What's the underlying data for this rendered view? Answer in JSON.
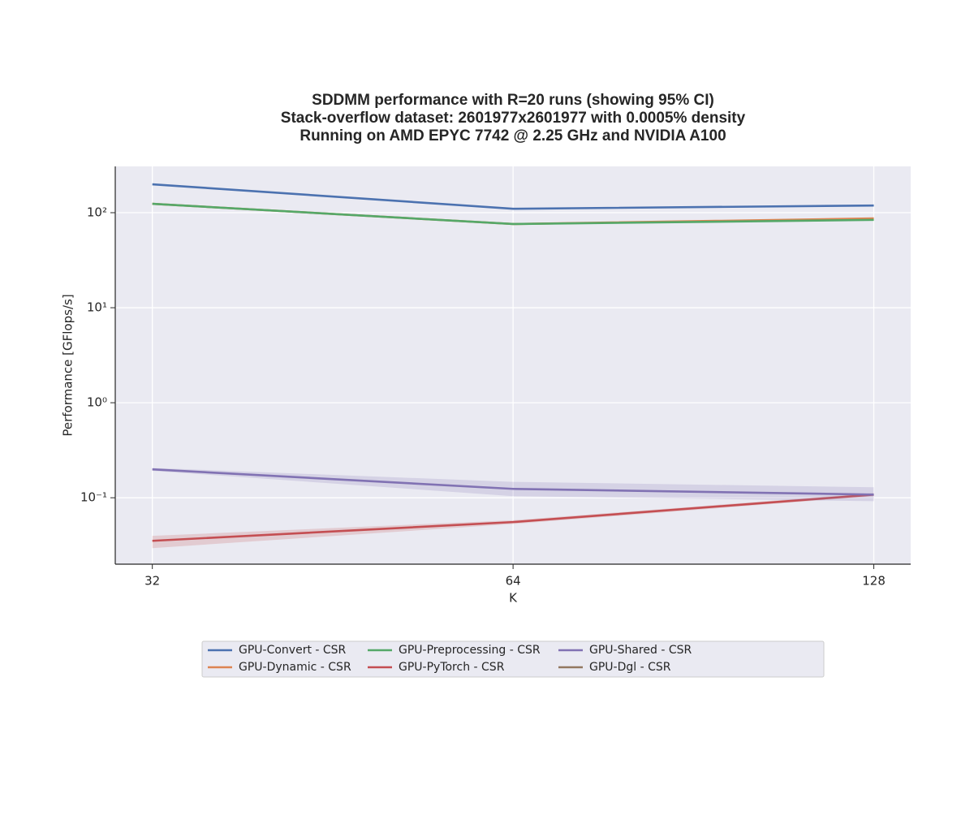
{
  "chart_data": {
    "type": "line",
    "title": [
      "SDDMM performance with R=20 runs (showing 95% CI)",
      "Stack-overflow dataset: 2601977x2601977 with 0.0005% density",
      "Running on AMD EPYC 7742 @ 2.25 GHz and NVIDIA A100"
    ],
    "xlabel": "K",
    "ylabel": "Performance [GFlops/s]",
    "x": [
      32,
      64,
      128
    ],
    "xscale": "log",
    "xlim": [
      29.8,
      137.4
    ],
    "xticks": [
      32,
      64,
      128
    ],
    "yscale": "log",
    "ylim": [
      0.02,
      307
    ],
    "yticks": [
      {
        "value": 0.1,
        "label": "10⁻¹"
      },
      {
        "value": 1,
        "label": "10⁰"
      },
      {
        "value": 10,
        "label": "10¹"
      },
      {
        "value": 100,
        "label": "10²"
      }
    ],
    "grid": true,
    "legend": "bottom",
    "series": [
      {
        "name": "GPU-Convert - CSR",
        "color": "#4c72b0",
        "values": [
          199,
          110,
          119
        ]
      },
      {
        "name": "GPU-Dynamic - CSR",
        "color": "#dd8452",
        "values": [
          124,
          76,
          87
        ]
      },
      {
        "name": "GPU-Preprocessing - CSR",
        "color": "#55a868",
        "values": [
          124,
          76,
          84
        ]
      },
      {
        "name": "GPU-PyTorch - CSR",
        "color": "#c44e52",
        "values": [
          0.0352,
          0.0555,
          0.108
        ],
        "lower": [
          0.0295,
          0.053,
          0.104
        ],
        "upper": [
          0.0397,
          0.058,
          0.112
        ]
      },
      {
        "name": "GPU-Shared - CSR",
        "color": "#8172b3",
        "values": [
          0.199,
          0.124,
          0.108
        ],
        "lower": [
          0.192,
          0.104,
          0.092
        ],
        "upper": [
          0.206,
          0.147,
          0.129
        ]
      },
      {
        "name": "GPU-Dgl - CSR",
        "color": "#937860",
        "values": [
          null,
          null,
          null
        ]
      }
    ]
  }
}
